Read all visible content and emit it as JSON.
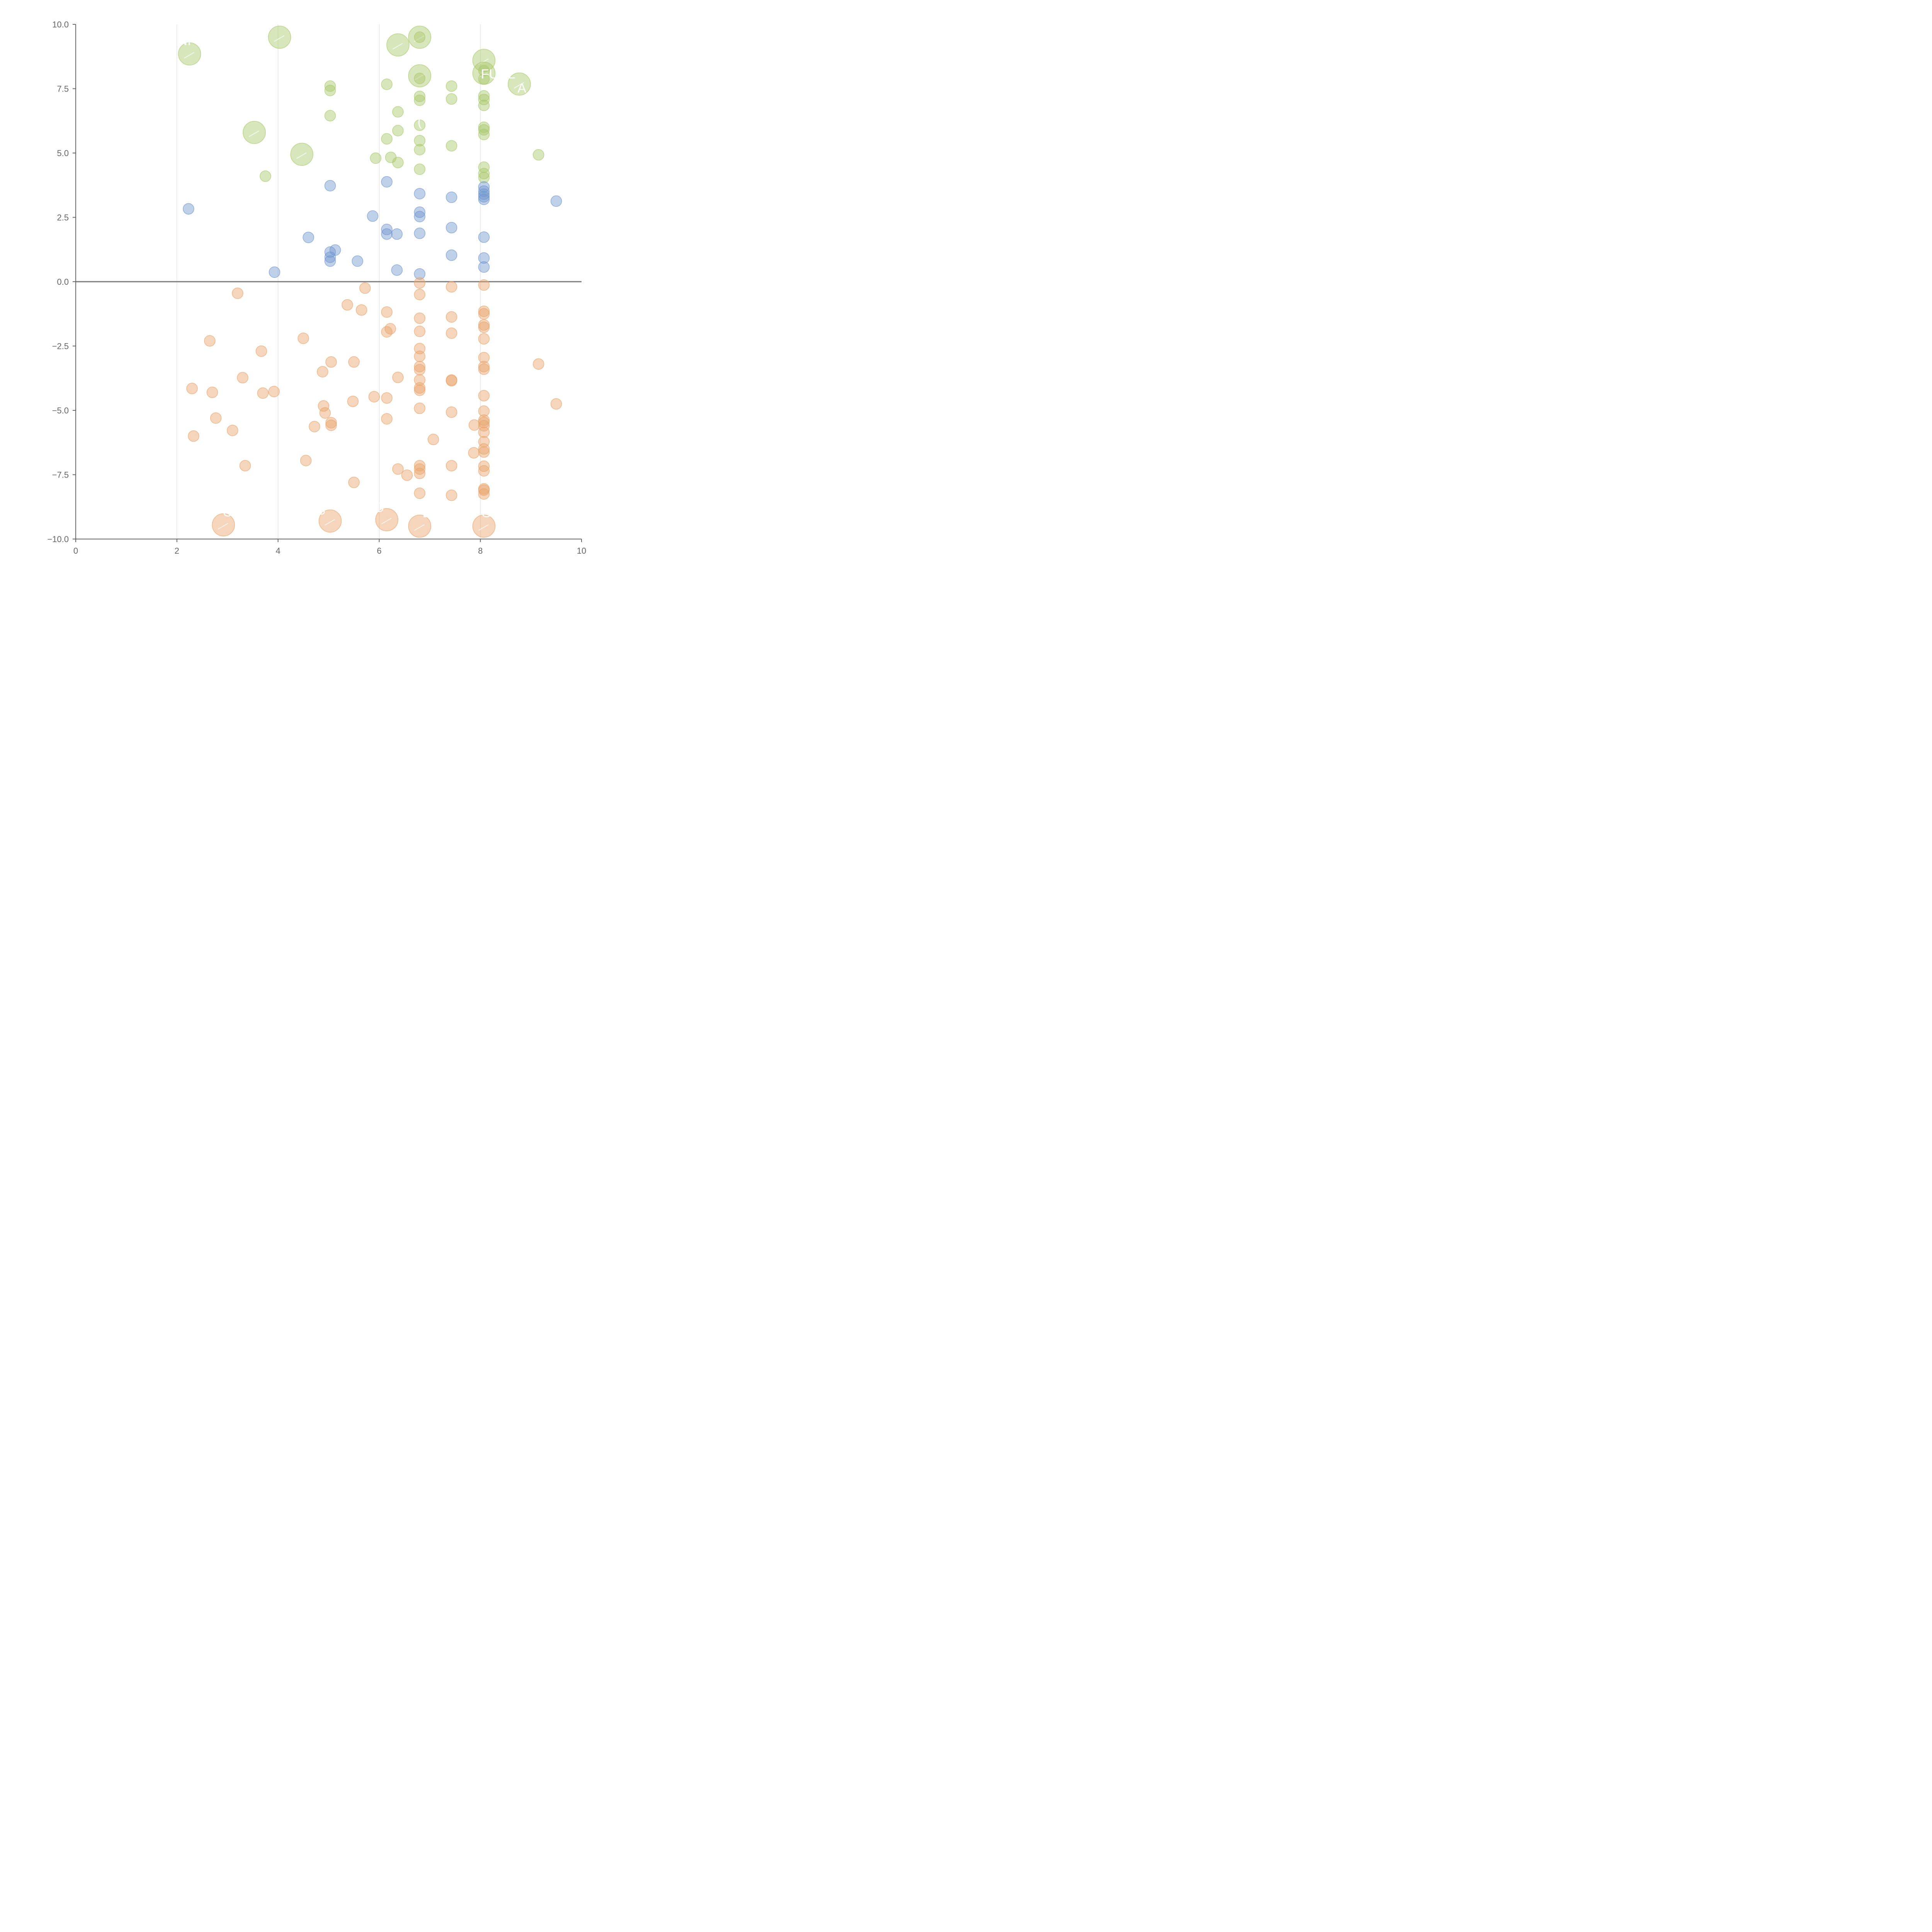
{
  "colors": {
    "positive_high": "#a9c86b",
    "positive_low": "#7096cf",
    "negative": "#e9a46a",
    "axis": "#666666",
    "grid": "#d9d9d9",
    "baseline": "#777777",
    "label": "#ffffff"
  },
  "chart_data": {
    "type": "scatter",
    "title": "",
    "xlabel": "",
    "ylabel": "",
    "xlim": [
      0,
      10
    ],
    "ylim": [
      -10,
      10
    ],
    "xticks": [
      "0",
      "2",
      "4",
      "6",
      "8",
      "10"
    ],
    "yticks": [
      "10.0",
      "7.5",
      "5.0",
      "2.5",
      "0.0",
      "−2.5",
      "−5.0",
      "−7.5",
      "−10.0"
    ],
    "grid": "vertical lines at x = 2, 4, 6, 8",
    "baseline_y": 0,
    "legend": "none",
    "series": [
      {
        "group": "positive-high",
        "points": [
          [
            2.25,
            8.85,
            "large",
            "N"
          ],
          [
            4.03,
            9.5,
            "large"
          ],
          [
            3.53,
            5.8,
            "large"
          ],
          [
            4.47,
            4.95,
            "large"
          ],
          [
            6.37,
            9.2,
            "large"
          ],
          [
            6.8,
            9.5,
            "large"
          ],
          [
            6.8,
            8.0,
            "large"
          ],
          [
            8.07,
            8.6,
            "large"
          ],
          [
            8.07,
            8.1,
            "large"
          ],
          [
            8.77,
            7.68,
            "large",
            "A"
          ],
          [
            6.8,
            9.5,
            "small"
          ],
          [
            3.75,
            4.1,
            "small"
          ],
          [
            5.03,
            7.6,
            "small"
          ],
          [
            5.03,
            7.43,
            "small"
          ],
          [
            5.03,
            6.45,
            "small"
          ],
          [
            5.93,
            4.8,
            "small"
          ],
          [
            6.15,
            7.67,
            "small"
          ],
          [
            6.15,
            5.55,
            "small"
          ],
          [
            6.23,
            4.83,
            "small"
          ],
          [
            6.37,
            6.6,
            "small"
          ],
          [
            6.37,
            5.87,
            "small"
          ],
          [
            6.37,
            4.63,
            "small"
          ],
          [
            6.8,
            7.9,
            "small"
          ],
          [
            6.8,
            7.2,
            "small"
          ],
          [
            6.8,
            7.05,
            "small"
          ],
          [
            6.8,
            6.08,
            "small"
          ],
          [
            6.8,
            5.48,
            "small"
          ],
          [
            6.8,
            5.13,
            "small"
          ],
          [
            6.8,
            4.37,
            "small"
          ],
          [
            7.43,
            7.6,
            "small"
          ],
          [
            7.43,
            7.1,
            "small"
          ],
          [
            7.43,
            5.28,
            "small"
          ],
          [
            8.07,
            8.2,
            "small"
          ],
          [
            8.07,
            7.88,
            "small"
          ],
          [
            8.07,
            7.22,
            "small"
          ],
          [
            8.07,
            7.08,
            "small"
          ],
          [
            8.07,
            6.85,
            "small"
          ],
          [
            8.07,
            6.0,
            "small"
          ],
          [
            8.07,
            5.9,
            "small"
          ],
          [
            8.07,
            5.72,
            "small"
          ],
          [
            8.07,
            4.45,
            "small"
          ],
          [
            8.07,
            4.2,
            "small"
          ],
          [
            8.07,
            4.05,
            "small"
          ],
          [
            9.15,
            4.93,
            "small"
          ]
        ]
      },
      {
        "group": "positive-low",
        "points": [
          [
            2.23,
            2.83
          ],
          [
            3.93,
            0.37
          ],
          [
            4.6,
            1.72
          ],
          [
            5.03,
            3.73
          ],
          [
            5.03,
            1.15
          ],
          [
            5.03,
            0.95
          ],
          [
            5.03,
            0.8
          ],
          [
            5.13,
            1.23
          ],
          [
            5.57,
            0.8
          ],
          [
            5.87,
            2.55
          ],
          [
            6.15,
            3.88
          ],
          [
            6.15,
            2.03
          ],
          [
            6.15,
            1.85
          ],
          [
            6.35,
            1.85
          ],
          [
            6.35,
            0.45
          ],
          [
            6.8,
            3.42
          ],
          [
            6.8,
            2.7
          ],
          [
            6.8,
            2.53
          ],
          [
            6.8,
            1.88
          ],
          [
            6.8,
            0.3
          ],
          [
            7.43,
            3.28
          ],
          [
            7.43,
            2.1
          ],
          [
            7.43,
            1.03
          ],
          [
            8.07,
            3.68
          ],
          [
            8.07,
            3.52
          ],
          [
            8.07,
            3.4
          ],
          [
            8.07,
            3.3
          ],
          [
            8.07,
            3.2
          ],
          [
            8.07,
            1.73
          ],
          [
            8.07,
            0.92
          ],
          [
            8.07,
            0.57
          ],
          [
            9.5,
            3.13
          ]
        ]
      },
      {
        "group": "negative",
        "points": [
          [
            3.2,
            -0.45,
            "small"
          ],
          [
            5.72,
            -0.25,
            "small"
          ],
          [
            5.37,
            -0.9,
            "small"
          ],
          [
            5.65,
            -1.1,
            "small"
          ],
          [
            2.65,
            -2.3,
            "small"
          ],
          [
            4.5,
            -2.2,
            "small"
          ],
          [
            3.67,
            -2.7,
            "small"
          ],
          [
            2.3,
            -4.15,
            "small"
          ],
          [
            2.7,
            -4.3,
            "small"
          ],
          [
            3.3,
            -3.73,
            "small"
          ],
          [
            3.7,
            -4.33,
            "small"
          ],
          [
            3.92,
            -4.27,
            "small"
          ],
          [
            2.77,
            -5.3,
            "small"
          ],
          [
            3.1,
            -5.78,
            "small"
          ],
          [
            2.33,
            -6.0,
            "small"
          ],
          [
            3.35,
            -7.15,
            "small"
          ],
          [
            4.55,
            -6.95,
            "small"
          ],
          [
            4.72,
            -5.63,
            "small"
          ],
          [
            4.88,
            -3.5,
            "small"
          ],
          [
            5.05,
            -3.12,
            "small"
          ],
          [
            4.9,
            -4.83,
            "small"
          ],
          [
            4.93,
            -5.1,
            "small"
          ],
          [
            5.05,
            -5.48,
            "small"
          ],
          [
            5.05,
            -5.58,
            "small"
          ],
          [
            5.5,
            -3.12,
            "small"
          ],
          [
            5.48,
            -4.65,
            "small"
          ],
          [
            5.5,
            -7.8,
            "small"
          ],
          [
            5.9,
            -4.47,
            "small"
          ],
          [
            6.15,
            -1.18,
            "small"
          ],
          [
            6.15,
            -1.95,
            "small"
          ],
          [
            6.22,
            -1.83,
            "small"
          ],
          [
            6.15,
            -4.52,
            "small"
          ],
          [
            6.15,
            -5.33,
            "small"
          ],
          [
            6.37,
            -3.72,
            "small"
          ],
          [
            6.37,
            -7.28,
            "small"
          ],
          [
            6.55,
            -7.52,
            "small"
          ],
          [
            6.8,
            -0.05,
            "small"
          ],
          [
            6.8,
            -0.5,
            "small"
          ],
          [
            6.8,
            -1.42,
            "small"
          ],
          [
            6.8,
            -1.93,
            "small"
          ],
          [
            6.8,
            -2.6,
            "small"
          ],
          [
            6.8,
            -2.9,
            "small"
          ],
          [
            6.8,
            -3.3,
            "small"
          ],
          [
            6.8,
            -3.42,
            "small"
          ],
          [
            6.8,
            -3.82,
            "small"
          ],
          [
            6.8,
            -4.13,
            "small"
          ],
          [
            6.8,
            -4.22,
            "small"
          ],
          [
            6.8,
            -4.92,
            "small"
          ],
          [
            6.8,
            -7.15,
            "small"
          ],
          [
            6.8,
            -7.28,
            "small"
          ],
          [
            6.8,
            -7.45,
            "small"
          ],
          [
            6.8,
            -8.22,
            "small"
          ],
          [
            7.07,
            -6.13,
            "small"
          ],
          [
            7.43,
            -0.2,
            "small"
          ],
          [
            7.43,
            -1.37,
            "small"
          ],
          [
            7.43,
            -2.0,
            "small"
          ],
          [
            7.43,
            -3.82,
            "small"
          ],
          [
            7.43,
            -3.85,
            "small"
          ],
          [
            7.43,
            -5.07,
            "small"
          ],
          [
            7.43,
            -7.15,
            "small"
          ],
          [
            7.43,
            -8.3,
            "small"
          ],
          [
            7.88,
            -5.57,
            "small"
          ],
          [
            7.87,
            -6.65,
            "small"
          ],
          [
            8.07,
            -0.13,
            "small"
          ],
          [
            8.07,
            -1.15,
            "small"
          ],
          [
            8.07,
            -1.25,
            "small"
          ],
          [
            8.07,
            -1.68,
            "small"
          ],
          [
            8.07,
            -1.77,
            "small"
          ],
          [
            8.07,
            -2.22,
            "small"
          ],
          [
            8.07,
            -2.95,
            "small"
          ],
          [
            8.07,
            -3.3,
            "small"
          ],
          [
            8.07,
            -3.4,
            "small"
          ],
          [
            8.07,
            -4.43,
            "small"
          ],
          [
            8.07,
            -5.03,
            "small"
          ],
          [
            8.07,
            -5.38,
            "small"
          ],
          [
            8.07,
            -5.47,
            "small"
          ],
          [
            8.07,
            -5.6,
            "small"
          ],
          [
            8.07,
            -5.85,
            "small"
          ],
          [
            8.07,
            -6.22,
            "small"
          ],
          [
            8.07,
            -6.5,
            "small"
          ],
          [
            8.07,
            -6.62,
            "small"
          ],
          [
            8.07,
            -7.17,
            "small"
          ],
          [
            8.07,
            -7.35,
            "small"
          ],
          [
            8.07,
            -8.05,
            "small"
          ],
          [
            8.07,
            -8.1,
            "small"
          ],
          [
            8.07,
            -8.25,
            "small"
          ],
          [
            9.15,
            -3.2,
            "small"
          ],
          [
            9.5,
            -4.75,
            "small"
          ],
          [
            2.92,
            -9.45,
            "large"
          ],
          [
            5.03,
            -9.3,
            "large"
          ],
          [
            6.15,
            -9.25,
            "large"
          ],
          [
            6.8,
            -9.5,
            "large"
          ],
          [
            8.07,
            -9.5,
            "large"
          ]
        ]
      }
    ],
    "text_labels": [
      {
        "text": "NI",
        "x": 2.15,
        "y": 9.2
      },
      {
        "text": "(",
        "x": 6.8,
        "y": 6.05
      },
      {
        "text": "FUNL",
        "x": 8.35,
        "y": 7.9
      },
      {
        "text": "A",
        "x": 8.82,
        "y": 7.35
      },
      {
        "text": "C",
        "x": 3.0,
        "y": -9.12
      },
      {
        "text": "S",
        "x": 4.85,
        "y": -9.05
      },
      {
        "text": "O",
        "x": 6.0,
        "y": -8.95
      },
      {
        "text": "D",
        "x": 6.95,
        "y": -9.15
      },
      {
        "text": "G",
        "x": 8.12,
        "y": -9.15
      }
    ]
  }
}
